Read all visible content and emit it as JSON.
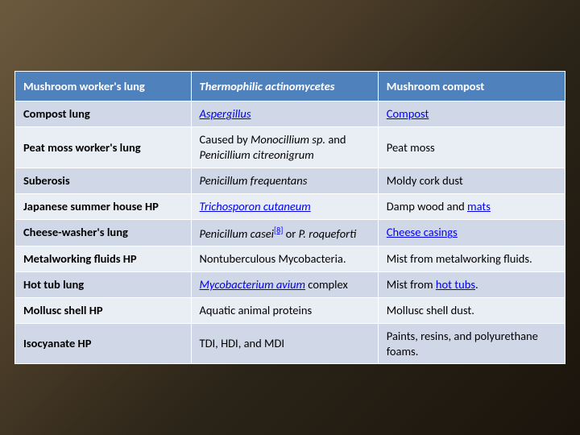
{
  "table": {
    "header_bg": "#4f81bd",
    "band_colors": [
      "#d0d8e8",
      "#e9edf4"
    ],
    "columns": [
      {
        "label": "Mushroom worker's lung"
      },
      {
        "label": "Thermophilic actinomycetes",
        "italic": true
      },
      {
        "label": "Mushroom compost"
      }
    ],
    "rows": [
      {
        "c0": [
          {
            "t": "Compost lung"
          }
        ],
        "c1": [
          {
            "t": "Aspergillus",
            "italic": true,
            "link": true
          }
        ],
        "c2": [
          {
            "t": "Compost",
            "link": true
          }
        ]
      },
      {
        "c0": [
          {
            "t": "Peat moss worker's lung"
          }
        ],
        "c1": [
          {
            "t": "Caused by "
          },
          {
            "t": "Monocillium sp.",
            "italic": true
          },
          {
            "t": " and "
          },
          {
            "t": "Penicillium citreonigrum",
            "italic": true
          }
        ],
        "c2": [
          {
            "t": "Peat moss"
          }
        ]
      },
      {
        "c0": [
          {
            "t": "Suberosis"
          }
        ],
        "c1": [
          {
            "t": "Penicillum frequentans",
            "italic": true
          }
        ],
        "c2": [
          {
            "t": "Moldy cork dust"
          }
        ]
      },
      {
        "c0": [
          {
            "t": "Japanese summer house HP"
          }
        ],
        "c1": [
          {
            "t": "Trichosporon cutaneum",
            "italic": true,
            "link": true
          }
        ],
        "c2": [
          {
            "t": "Damp wood and "
          },
          {
            "t": "mats",
            "link": true
          }
        ]
      },
      {
        "c0": [
          {
            "t": "Cheese-washer's lung"
          }
        ],
        "c1": [
          {
            "t": "Penicillum casei",
            "italic": true
          },
          {
            "t": "[8]",
            "link": true,
            "sup": true
          },
          {
            "t": " or "
          },
          {
            "t": "P. roqueforti",
            "italic": true
          }
        ],
        "c2": [
          {
            "t": "Cheese casings",
            "link": true
          }
        ]
      },
      {
        "c0": [
          {
            "t": "Metalworking fluids HP"
          }
        ],
        "c1": [
          {
            "t": "Nontuberculous Mycobacteria."
          }
        ],
        "c2": [
          {
            "t": "Mist from metalworking fluids."
          }
        ]
      },
      {
        "c0": [
          {
            "t": "Hot tub lung"
          }
        ],
        "c1": [
          {
            "t": "Mycobacterium avium",
            "italic": true,
            "link": true
          },
          {
            "t": " complex"
          }
        ],
        "c2": [
          {
            "t": "Mist from "
          },
          {
            "t": "hot tubs",
            "link": true
          },
          {
            "t": "."
          }
        ]
      },
      {
        "c0": [
          {
            "t": "Mollusc shell HP"
          }
        ],
        "c1": [
          {
            "t": "Aquatic animal proteins"
          }
        ],
        "c2": [
          {
            "t": "Mollusc shell dust."
          }
        ]
      },
      {
        "c0": [
          {
            "t": "Isocyanate HP"
          }
        ],
        "c1": [
          {
            "t": "TDI, HDI, and MDI"
          }
        ],
        "c2": [
          {
            "t": "Paints, resins, and polyurethane foams."
          }
        ]
      }
    ]
  }
}
